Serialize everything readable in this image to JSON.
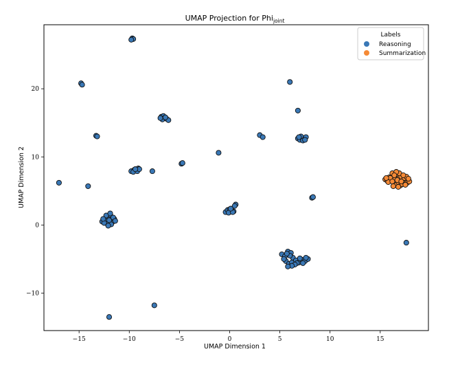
{
  "chart_data": {
    "type": "scatter",
    "title": "UMAP Projection for Phi",
    "title_subscript": "joint",
    "xlabel": "UMAP Dimension 1",
    "ylabel": "UMAP Dimension 2",
    "xlim": [
      -18.5,
      19.8
    ],
    "ylim": [
      -15.5,
      29.4
    ],
    "xticks": [
      -15,
      -10,
      -5,
      0,
      5,
      10,
      15
    ],
    "yticks": [
      -10,
      0,
      10,
      20
    ],
    "xtick_labels": [
      "−15",
      "−10",
      "−5",
      "0",
      "5",
      "10",
      "15"
    ],
    "ytick_labels": [
      "−10",
      "0",
      "10",
      "20"
    ],
    "grid": false,
    "legend": {
      "title": "Labels",
      "placement": "top-right"
    },
    "series": [
      {
        "name": "Reasoning",
        "color": "#3a78b6",
        "points": [
          [
            -9.7,
            27.4
          ],
          [
            -9.6,
            27.3
          ],
          [
            -9.8,
            27.2
          ],
          [
            -14.8,
            20.8
          ],
          [
            -14.7,
            20.6
          ],
          [
            -13.3,
            13.1
          ],
          [
            -13.2,
            13.0
          ],
          [
            -6.8,
            15.9
          ],
          [
            -6.6,
            16.0
          ],
          [
            -6.5,
            15.7
          ],
          [
            -6.7,
            15.5
          ],
          [
            -6.3,
            15.6
          ],
          [
            -6.1,
            15.4
          ],
          [
            -6.9,
            15.7
          ],
          [
            -6.4,
            15.8
          ],
          [
            -9.8,
            7.9
          ],
          [
            -9.5,
            8.1
          ],
          [
            -9.3,
            8.0
          ],
          [
            -9.1,
            8.3
          ],
          [
            -9.6,
            7.8
          ],
          [
            -9.2,
            7.9
          ],
          [
            -9.0,
            8.2
          ],
          [
            -9.4,
            8.2
          ],
          [
            -7.7,
            7.9
          ],
          [
            -4.8,
            9.0
          ],
          [
            -4.7,
            9.1
          ],
          [
            -1.1,
            10.6
          ],
          [
            -17.0,
            6.2
          ],
          [
            -14.1,
            5.7
          ],
          [
            -12.7,
            0.5
          ],
          [
            -12.4,
            0.8
          ],
          [
            -12.1,
            1.2
          ],
          [
            -11.9,
            1.5
          ],
          [
            -12.2,
            0.2
          ],
          [
            -11.7,
            0.4
          ],
          [
            -11.5,
            0.9
          ],
          [
            -11.8,
            0.1
          ],
          [
            -12.5,
            0.3
          ],
          [
            -12.0,
            0.7
          ],
          [
            -11.6,
            1.1
          ],
          [
            -12.3,
            1.4
          ],
          [
            -12.6,
            0.9
          ],
          [
            -11.9,
            1.7
          ],
          [
            -12.1,
            -0.1
          ],
          [
            -11.4,
            0.6
          ],
          [
            -0.4,
            1.9
          ],
          [
            -0.2,
            2.2
          ],
          [
            0.0,
            2.3
          ],
          [
            0.2,
            2.1
          ],
          [
            0.4,
            2.0
          ],
          [
            -0.1,
            1.8
          ],
          [
            0.3,
            1.9
          ],
          [
            0.6,
            3.0
          ],
          [
            0.5,
            2.8
          ],
          [
            0.1,
            2.4
          ],
          [
            3.0,
            13.2
          ],
          [
            3.3,
            12.9
          ],
          [
            6.0,
            21.0
          ],
          [
            6.8,
            16.8
          ],
          [
            6.8,
            12.7
          ],
          [
            7.0,
            12.5
          ],
          [
            7.2,
            12.8
          ],
          [
            7.4,
            12.6
          ],
          [
            7.6,
            12.9
          ],
          [
            7.1,
            13.0
          ],
          [
            7.3,
            12.4
          ],
          [
            6.9,
            12.9
          ],
          [
            7.5,
            12.5
          ],
          [
            8.2,
            4.0
          ],
          [
            8.3,
            4.1
          ],
          [
            5.2,
            -4.3
          ],
          [
            5.5,
            -4.6
          ],
          [
            5.8,
            -3.9
          ],
          [
            6.1,
            -4.1
          ],
          [
            6.3,
            -4.8
          ],
          [
            5.6,
            -5.3
          ],
          [
            5.9,
            -5.7
          ],
          [
            6.2,
            -5.5
          ],
          [
            5.4,
            -5.0
          ],
          [
            6.0,
            -4.5
          ],
          [
            5.7,
            -4.2
          ],
          [
            6.6,
            -5.2
          ],
          [
            6.9,
            -5.5
          ],
          [
            7.2,
            -5.1
          ],
          [
            7.5,
            -5.3
          ],
          [
            7.8,
            -5.0
          ],
          [
            7.0,
            -4.9
          ],
          [
            7.3,
            -5.6
          ],
          [
            6.7,
            -5.6
          ],
          [
            7.6,
            -4.8
          ],
          [
            6.5,
            -5.8
          ],
          [
            6.2,
            -6.0
          ],
          [
            5.8,
            -6.1
          ],
          [
            17.6,
            -2.6
          ],
          [
            -7.5,
            -11.8
          ],
          [
            -12.0,
            -13.5
          ]
        ]
      },
      {
        "name": "Summarization",
        "color": "#f58a36",
        "points": [
          [
            15.5,
            6.7
          ],
          [
            15.7,
            6.5
          ],
          [
            15.9,
            7.0
          ],
          [
            16.1,
            6.6
          ],
          [
            16.3,
            7.2
          ],
          [
            16.5,
            6.8
          ],
          [
            16.7,
            7.5
          ],
          [
            16.9,
            6.9
          ],
          [
            17.1,
            7.1
          ],
          [
            17.3,
            6.5
          ],
          [
            17.5,
            6.8
          ],
          [
            17.7,
            6.2
          ],
          [
            17.9,
            6.4
          ],
          [
            16.2,
            7.6
          ],
          [
            16.4,
            6.2
          ],
          [
            16.6,
            5.9
          ],
          [
            16.8,
            6.3
          ],
          [
            17.0,
            5.8
          ],
          [
            17.2,
            6.0
          ],
          [
            17.4,
            6.9
          ],
          [
            17.6,
            7.1
          ],
          [
            16.0,
            6.9
          ],
          [
            15.8,
            6.3
          ],
          [
            16.3,
            5.7
          ],
          [
            16.9,
            7.6
          ],
          [
            17.8,
            6.8
          ],
          [
            17.3,
            7.3
          ],
          [
            16.6,
            7.8
          ],
          [
            15.6,
            6.9
          ],
          [
            16.2,
            6.4
          ],
          [
            16.7,
            6.6
          ],
          [
            17.1,
            6.4
          ],
          [
            17.5,
            5.9
          ],
          [
            16.4,
            7.3
          ],
          [
            16.8,
            5.6
          ]
        ]
      }
    ]
  }
}
